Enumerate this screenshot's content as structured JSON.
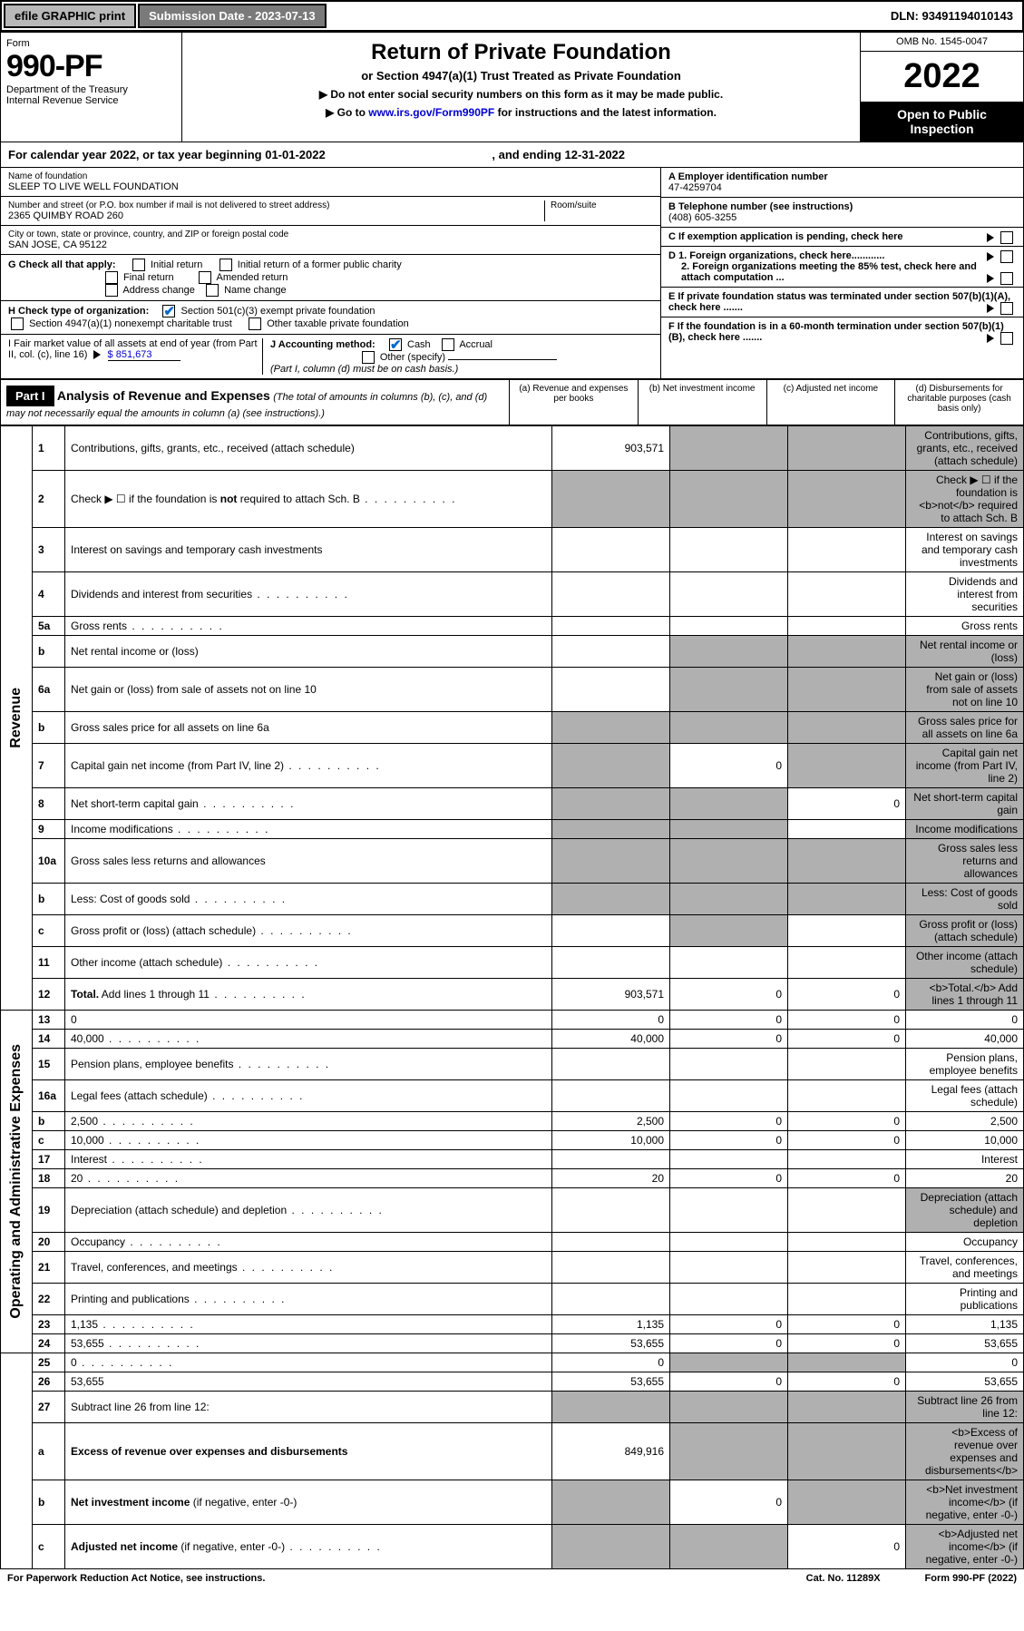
{
  "topbar": {
    "efile": "efile GRAPHIC print",
    "submission": "Submission Date - 2023-07-13",
    "dln": "DLN: 93491194010143"
  },
  "header": {
    "form_label": "Form",
    "form_no": "990-PF",
    "dept": "Department of the Treasury",
    "irs": "Internal Revenue Service",
    "title": "Return of Private Foundation",
    "sub1": "or Section 4947(a)(1) Trust Treated as Private Foundation",
    "sub2a": "▶ Do not enter social security numbers on this form as it may be made public.",
    "sub2b": "▶ Go to ",
    "link": "www.irs.gov/Form990PF",
    "sub2c": " for instructions and the latest information.",
    "omb": "OMB No. 1545-0047",
    "year": "2022",
    "open": "Open to Public Inspection"
  },
  "calyear": {
    "text": "For calendar year 2022, or tax year beginning 01-01-2022",
    "ending": ", and ending 12-31-2022"
  },
  "info": {
    "name_lbl": "Name of foundation",
    "name": "SLEEP TO LIVE WELL FOUNDATION",
    "addr_lbl": "Number and street (or P.O. box number if mail is not delivered to street address)",
    "addr": "2365 QUIMBY ROAD 260",
    "room_lbl": "Room/suite",
    "city_lbl": "City or town, state or province, country, and ZIP or foreign postal code",
    "city": "SAN JOSE, CA  95122",
    "ein_lbl": "A Employer identification number",
    "ein": "47-4259704",
    "tel_lbl": "B Telephone number (see instructions)",
    "tel": "(408) 605-3255",
    "c": "C If exemption application is pending, check here",
    "d1": "D 1. Foreign organizations, check here............",
    "d2": "2. Foreign organizations meeting the 85% test, check here and attach computation ...",
    "e": "E  If private foundation status was terminated under section 507(b)(1)(A), check here .......",
    "f": "F  If the foundation is in a 60-month termination under section 507(b)(1)(B), check here .......",
    "g_lbl": "G Check all that apply:",
    "g_opts": [
      "Initial return",
      "Initial return of a former public charity",
      "Final return",
      "Amended return",
      "Address change",
      "Name change"
    ],
    "h_lbl": "H Check type of organization:",
    "h_opts": [
      "Section 501(c)(3) exempt private foundation",
      "Section 4947(a)(1) nonexempt charitable trust",
      "Other taxable private foundation"
    ],
    "i_lbl": "I Fair market value of all assets at end of year (from Part II, col. (c), line 16)",
    "i_val": "$  851,673",
    "j_lbl": "J Accounting method:",
    "j_opts": [
      "Cash",
      "Accrual",
      "Other (specify)"
    ],
    "j_note": "(Part I, column (d) must be on cash basis.)"
  },
  "part1": {
    "label": "Part I",
    "title": "Analysis of Revenue and Expenses",
    "note": "(The total of amounts in columns (b), (c), and (d) may not necessarily equal the amounts in column (a) (see instructions).)",
    "cols": {
      "a": "(a)   Revenue and expenses per books",
      "b": "(b)   Net investment income",
      "c": "(c)   Adjusted net income",
      "d": "(d)   Disbursements for charitable purposes (cash basis only)"
    }
  },
  "sections": {
    "revenue": "Revenue",
    "opex": "Operating and Administrative Expenses"
  },
  "lines": [
    {
      "n": "1",
      "d": "Contributions, gifts, grants, etc., received (attach schedule)",
      "a": "903,571",
      "bShade": true,
      "cShade": true,
      "dShade": true
    },
    {
      "n": "2",
      "d": "Check ▶ ☐ if the foundation is <b>not</b> required to attach Sch. B",
      "dots": true,
      "aShade": true,
      "bShade": true,
      "cShade": true,
      "dShade": true
    },
    {
      "n": "3",
      "d": "Interest on savings and temporary cash investments"
    },
    {
      "n": "4",
      "d": "Dividends and interest from securities",
      "dots": true
    },
    {
      "n": "5a",
      "d": "Gross rents",
      "dots": true
    },
    {
      "n": "b",
      "d": "Net rental income or (loss)",
      "bShade": true,
      "cShade": true,
      "dShade": true
    },
    {
      "n": "6a",
      "d": "Net gain or (loss) from sale of assets not on line 10",
      "bShade": true,
      "cShade": true,
      "dShade": true
    },
    {
      "n": "b",
      "d": "Gross sales price for all assets on line 6a",
      "aShade": true,
      "bShade": true,
      "cShade": true,
      "dShade": true
    },
    {
      "n": "7",
      "d": "Capital gain net income (from Part IV, line 2)",
      "dots": true,
      "aShade": true,
      "b": "0",
      "cShade": true,
      "dShade": true
    },
    {
      "n": "8",
      "d": "Net short-term capital gain",
      "dots": true,
      "aShade": true,
      "bShade": true,
      "c": "0",
      "dShade": true
    },
    {
      "n": "9",
      "d": "Income modifications",
      "dots": true,
      "aShade": true,
      "bShade": true,
      "dShade": true
    },
    {
      "n": "10a",
      "d": "Gross sales less returns and allowances",
      "aShade": true,
      "bShade": true,
      "cShade": true,
      "dShade": true
    },
    {
      "n": "b",
      "d": "Less: Cost of goods sold",
      "dots": true,
      "aShade": true,
      "bShade": true,
      "cShade": true,
      "dShade": true
    },
    {
      "n": "c",
      "d": "Gross profit or (loss) (attach schedule)",
      "dots": true,
      "bShade": true,
      "dShade": true
    },
    {
      "n": "11",
      "d": "Other income (attach schedule)",
      "dots": true,
      "dShade": true
    },
    {
      "n": "12",
      "d": "<b>Total.</b> Add lines 1 through 11",
      "dots": true,
      "a": "903,571",
      "b": "0",
      "c": "0",
      "dShade": true
    },
    {
      "n": "13",
      "d": "0",
      "a": "0",
      "b": "0",
      "c": "0",
      "sec": "opex"
    },
    {
      "n": "14",
      "d": "40,000",
      "dots": true,
      "a": "40,000",
      "b": "0",
      "c": "0"
    },
    {
      "n": "15",
      "d": "Pension plans, employee benefits",
      "dots": true
    },
    {
      "n": "16a",
      "d": "Legal fees (attach schedule)",
      "dots": true
    },
    {
      "n": "b",
      "d": "2,500",
      "dots": true,
      "a": "2,500",
      "b": "0",
      "c": "0"
    },
    {
      "n": "c",
      "d": "10,000",
      "dots": true,
      "a": "10,000",
      "b": "0",
      "c": "0"
    },
    {
      "n": "17",
      "d": "Interest",
      "dots": true
    },
    {
      "n": "18",
      "d": "20",
      "dots": true,
      "a": "20",
      "b": "0",
      "c": "0"
    },
    {
      "n": "19",
      "d": "Depreciation (attach schedule) and depletion",
      "dots": true,
      "dShade": true
    },
    {
      "n": "20",
      "d": "Occupancy",
      "dots": true
    },
    {
      "n": "21",
      "d": "Travel, conferences, and meetings",
      "dots": true
    },
    {
      "n": "22",
      "d": "Printing and publications",
      "dots": true
    },
    {
      "n": "23",
      "d": "1,135",
      "dots": true,
      "a": "1,135",
      "b": "0",
      "c": "0"
    },
    {
      "n": "24",
      "d": "53,655",
      "dots": true,
      "a": "53,655",
      "b": "0",
      "c": "0"
    },
    {
      "n": "25",
      "d": "0",
      "dots": true,
      "a": "0",
      "bShade": true,
      "cShade": true
    },
    {
      "n": "26",
      "d": "53,655",
      "a": "53,655",
      "b": "0",
      "c": "0"
    },
    {
      "n": "27",
      "d": "Subtract line 26 from line 12:",
      "aShade": true,
      "bShade": true,
      "cShade": true,
      "dShade": true,
      "sec": "end"
    },
    {
      "n": "a",
      "d": "<b>Excess of revenue over expenses and disbursements</b>",
      "a": "849,916",
      "bShade": true,
      "cShade": true,
      "dShade": true
    },
    {
      "n": "b",
      "d": "<b>Net investment income</b> (if negative, enter -0-)",
      "aShade": true,
      "b": "0",
      "cShade": true,
      "dShade": true
    },
    {
      "n": "c",
      "d": "<b>Adjusted net income</b> (if negative, enter -0-)",
      "dots": true,
      "aShade": true,
      "bShade": true,
      "c": "0",
      "dShade": true
    }
  ],
  "footer": {
    "left": "For Paperwork Reduction Act Notice, see instructions.",
    "mid": "Cat. No. 11289X",
    "right": "Form 990-PF (2022)"
  },
  "colors": {
    "shade": "#b0b0b0",
    "link": "#0000cc",
    "check": "#0066cc"
  }
}
